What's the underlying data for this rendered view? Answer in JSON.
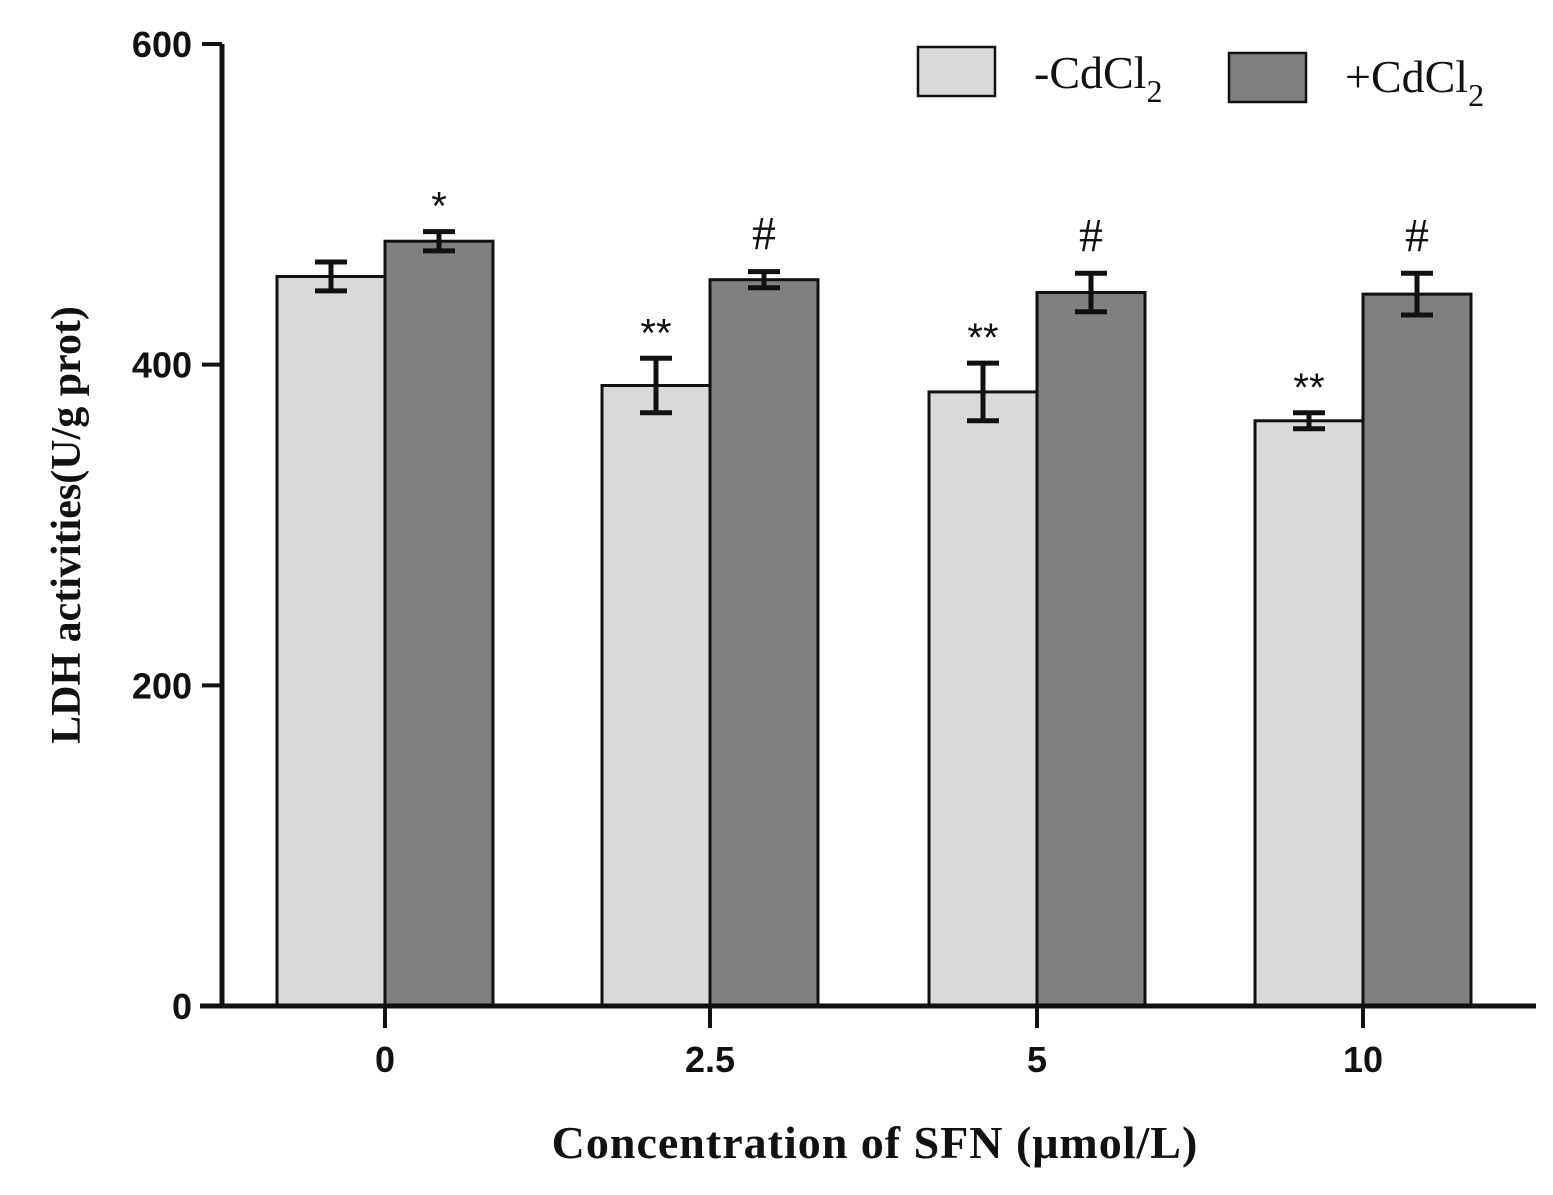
{
  "chart_data": {
    "type": "bar",
    "title": "",
    "xlabel": "Concentration of SFN (μmol/L)",
    "ylabel": "LDH activities(U/g prot)",
    "categories": [
      "0",
      "2.5",
      "5",
      "10"
    ],
    "ylim": [
      0,
      600
    ],
    "yticks": [
      "0",
      "200",
      "400",
      "600"
    ],
    "series": [
      {
        "name": "-CdCl2",
        "legend_base": "-CdCl",
        "legend_sub": "2",
        "color": "#d9d9d9",
        "values": [
          455,
          387,
          383,
          365
        ],
        "errors": [
          9,
          17,
          18,
          5
        ],
        "annotations": [
          "",
          "**",
          "**",
          "**"
        ]
      },
      {
        "name": "+CdCl2",
        "legend_base": "+CdCl",
        "legend_sub": "2",
        "color": "#808080",
        "values": [
          477,
          453,
          445,
          444
        ],
        "errors": [
          6,
          5,
          12,
          13
        ],
        "annotations": [
          "*",
          "#",
          "#",
          "#"
        ]
      }
    ],
    "legend_position": "top-right"
  }
}
